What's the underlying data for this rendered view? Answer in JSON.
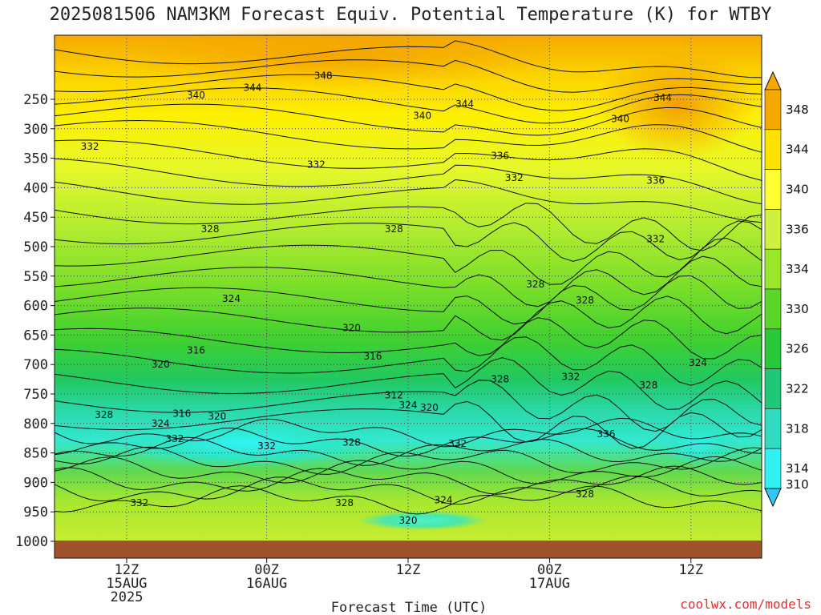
{
  "title": "2025081506 NAM3KM Forecast Equiv. Potential Temperature (K) for WTBY",
  "credit": "coolwx.com/models",
  "chart_data": {
    "type": "time-height contour (filled)",
    "title": "2025081506 NAM3KM Forecast Equiv. Potential Temperature (K) for WTBY",
    "xlabel": "Forecast Time (UTC)",
    "ylabel": "",
    "y_axis": {
      "ticks": [
        250,
        300,
        350,
        400,
        450,
        500,
        550,
        600,
        650,
        700,
        750,
        800,
        850,
        900,
        950,
        1000
      ],
      "scale": "pressure (inverted)"
    },
    "x_axis": {
      "ticks": [
        {
          "line1": "12Z",
          "line2": "15AUG",
          "line3": "2025"
        },
        {
          "line1": "00Z",
          "line2": "16AUG",
          "line3": ""
        },
        {
          "line1": "12Z",
          "line2": "",
          "line3": ""
        },
        {
          "line1": "00Z",
          "line2": "17AUG",
          "line3": ""
        },
        {
          "line1": "12Z",
          "line2": "",
          "line3": ""
        }
      ]
    },
    "colorbar": {
      "levels": [
        348,
        344,
        340,
        336,
        334,
        330,
        326,
        322,
        318,
        314,
        310
      ],
      "colors": [
        "#f5a800",
        "#fbe200",
        "#ffff33",
        "#d0f040",
        "#9ae62a",
        "#5ad62a",
        "#28c83a",
        "#1ec878",
        "#30dcc0",
        "#30f0f0",
        "#30c8f0"
      ]
    },
    "contour_labels": [
      {
        "text": "348",
        "p": 210,
        "x_frac": 0.38
      },
      {
        "text": "344",
        "p": 230,
        "x_frac": 0.28
      },
      {
        "text": "344",
        "p": 258,
        "x_frac": 0.58
      },
      {
        "text": "344",
        "p": 247,
        "x_frac": 0.86
      },
      {
        "text": "340",
        "p": 243,
        "x_frac": 0.2
      },
      {
        "text": "340",
        "p": 278,
        "x_frac": 0.52
      },
      {
        "text": "340",
        "p": 283,
        "x_frac": 0.8
      },
      {
        "text": "336",
        "p": 346,
        "x_frac": 0.63
      },
      {
        "text": "336",
        "p": 388,
        "x_frac": 0.85
      },
      {
        "text": "332",
        "p": 330,
        "x_frac": 0.05
      },
      {
        "text": "332",
        "p": 361,
        "x_frac": 0.37
      },
      {
        "text": "332",
        "p": 383,
        "x_frac": 0.65
      },
      {
        "text": "332",
        "p": 487,
        "x_frac": 0.85
      },
      {
        "text": "332",
        "p": 826,
        "x_frac": 0.17
      },
      {
        "text": "332",
        "p": 838,
        "x_frac": 0.3
      },
      {
        "text": "332",
        "p": 834,
        "x_frac": 0.57
      },
      {
        "text": "332",
        "p": 721,
        "x_frac": 0.73
      },
      {
        "text": "332",
        "p": 935,
        "x_frac": 0.12
      },
      {
        "text": "328",
        "p": 470,
        "x_frac": 0.22
      },
      {
        "text": "328",
        "p": 470,
        "x_frac": 0.48
      },
      {
        "text": "328",
        "p": 564,
        "x_frac": 0.68
      },
      {
        "text": "328",
        "p": 591,
        "x_frac": 0.75
      },
      {
        "text": "328",
        "p": 725,
        "x_frac": 0.63
      },
      {
        "text": "328",
        "p": 735,
        "x_frac": 0.84
      },
      {
        "text": "328",
        "p": 785,
        "x_frac": 0.07
      },
      {
        "text": "328",
        "p": 832,
        "x_frac": 0.42
      },
      {
        "text": "328",
        "p": 920,
        "x_frac": 0.75
      },
      {
        "text": "328",
        "p": 935,
        "x_frac": 0.41
      },
      {
        "text": "324",
        "p": 588,
        "x_frac": 0.25
      },
      {
        "text": "324",
        "p": 697,
        "x_frac": 0.91
      },
      {
        "text": "324",
        "p": 769,
        "x_frac": 0.5
      },
      {
        "text": "324",
        "p": 800,
        "x_frac": 0.15
      },
      {
        "text": "324",
        "p": 930,
        "x_frac": 0.55
      },
      {
        "text": "320",
        "p": 638,
        "x_frac": 0.42
      },
      {
        "text": "320",
        "p": 700,
        "x_frac": 0.15
      },
      {
        "text": "320",
        "p": 773,
        "x_frac": 0.53
      },
      {
        "text": "320",
        "p": 788,
        "x_frac": 0.23
      },
      {
        "text": "320",
        "p": 965,
        "x_frac": 0.5
      },
      {
        "text": "316",
        "p": 676,
        "x_frac": 0.2
      },
      {
        "text": "316",
        "p": 686,
        "x_frac": 0.45
      },
      {
        "text": "316",
        "p": 783,
        "x_frac": 0.18
      },
      {
        "text": "312",
        "p": 752,
        "x_frac": 0.48
      },
      {
        "text": "336",
        "p": 818,
        "x_frac": 0.78
      }
    ]
  }
}
